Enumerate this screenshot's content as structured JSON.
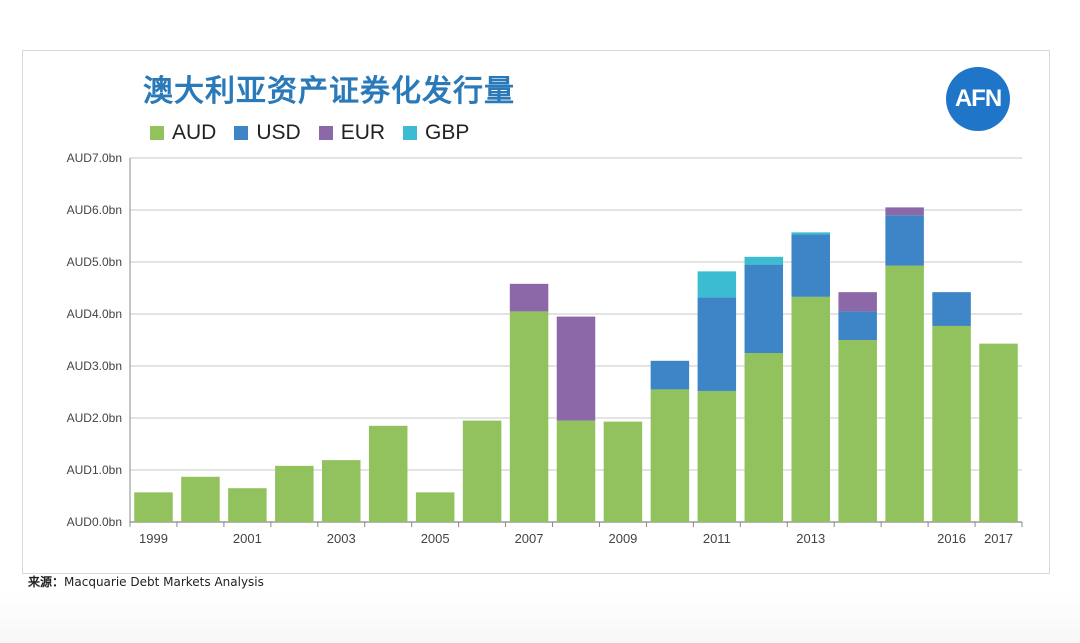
{
  "header": {
    "title": "澳大利亚资产证券化发行量",
    "logo_text": "AFN"
  },
  "source": {
    "label": "来源：",
    "text": "Macquarie Debt Markets Analysis"
  },
  "colors": {
    "AUD": "#91c25e",
    "USD": "#3d85c6",
    "EUR": "#8c68a8",
    "GBP": "#3cbcd0"
  },
  "chart_data": {
    "type": "bar",
    "stacked": true,
    "categories": [
      "1999",
      "2000",
      "2001",
      "2002",
      "2003",
      "2004",
      "2005",
      "2006",
      "2007",
      "2008",
      "2009",
      "2010",
      "2011",
      "2012",
      "2013",
      "2014",
      "2015",
      "2016",
      "2017"
    ],
    "x_tick_labels": [
      "1999",
      "2001",
      "2003",
      "2005",
      "2007",
      "2009",
      "2011",
      "2013",
      "2016",
      "2017"
    ],
    "series": [
      {
        "name": "AUD",
        "values": [
          0.57,
          0.87,
          0.65,
          1.08,
          1.19,
          1.85,
          0.57,
          1.95,
          4.05,
          1.95,
          1.93,
          2.55,
          2.52,
          3.25,
          4.33,
          3.5,
          4.93,
          3.77,
          3.43
        ]
      },
      {
        "name": "USD",
        "values": [
          0,
          0,
          0,
          0,
          0,
          0,
          0,
          0,
          0,
          0,
          0,
          0.55,
          1.8,
          1.7,
          1.2,
          0.55,
          0.97,
          0.65,
          0
        ]
      },
      {
        "name": "EUR",
        "values": [
          0,
          0,
          0,
          0,
          0,
          0,
          0,
          0,
          0.53,
          2.0,
          0,
          0,
          0,
          0,
          0,
          0.37,
          0.15,
          0,
          0
        ]
      },
      {
        "name": "GBP",
        "values": [
          0,
          0,
          0,
          0,
          0,
          0,
          0,
          0,
          0,
          0,
          0,
          0,
          0.5,
          0.15,
          0.04,
          0,
          0,
          0,
          0
        ]
      }
    ],
    "y_ticks": [
      "AUD0.0bn",
      "AUD1.0bn",
      "AUD2.0bn",
      "AUD3.0bn",
      "AUD4.0bn",
      "AUD5.0bn",
      "AUD6.0bn",
      "AUD7.0bn"
    ],
    "ylim": [
      0,
      7
    ],
    "grid": true,
    "legend_position": "top-left"
  }
}
